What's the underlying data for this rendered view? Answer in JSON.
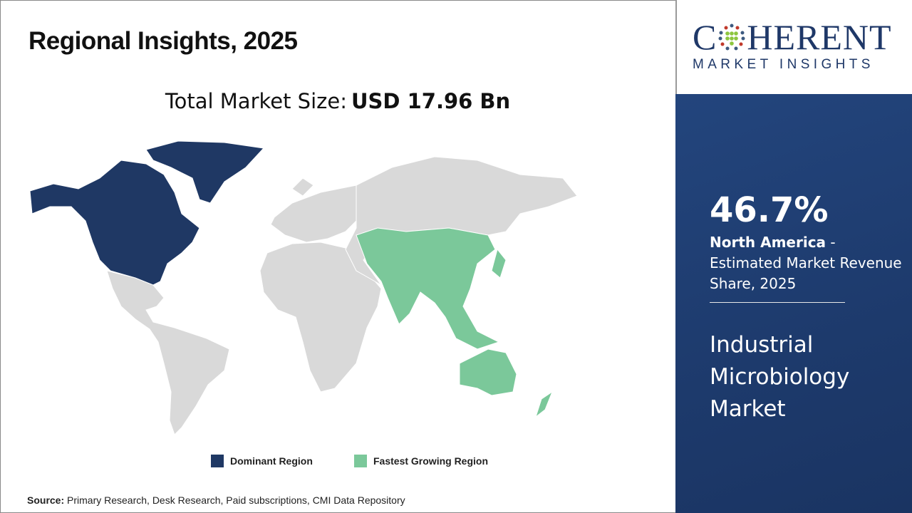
{
  "title": "Regional Insights, 2025",
  "total_market": {
    "label": "Total Market Size:",
    "value": "USD 17.96 Bn"
  },
  "legend": [
    {
      "label": "Dominant Region",
      "color": "#1f3864"
    },
    {
      "label": "Fastest Growing Region",
      "color": "#7bc89a"
    }
  ],
  "map": {
    "dominant_region": "North America",
    "fastest_growing_region": "Asia Pacific",
    "other_color": "#d9d9d9"
  },
  "source": {
    "label": "Source:",
    "text": "Primary Research, Desk Research, Paid subscriptions, CMI Data Repository"
  },
  "logo": {
    "top": "COHERENT",
    "sub": "MARKET INSIGHTS"
  },
  "panel": {
    "share": "46.7%",
    "region": "North America",
    "share_desc": " - Estimated Market Revenue Share, 2025",
    "market_name": "Industrial Microbiology Market"
  }
}
